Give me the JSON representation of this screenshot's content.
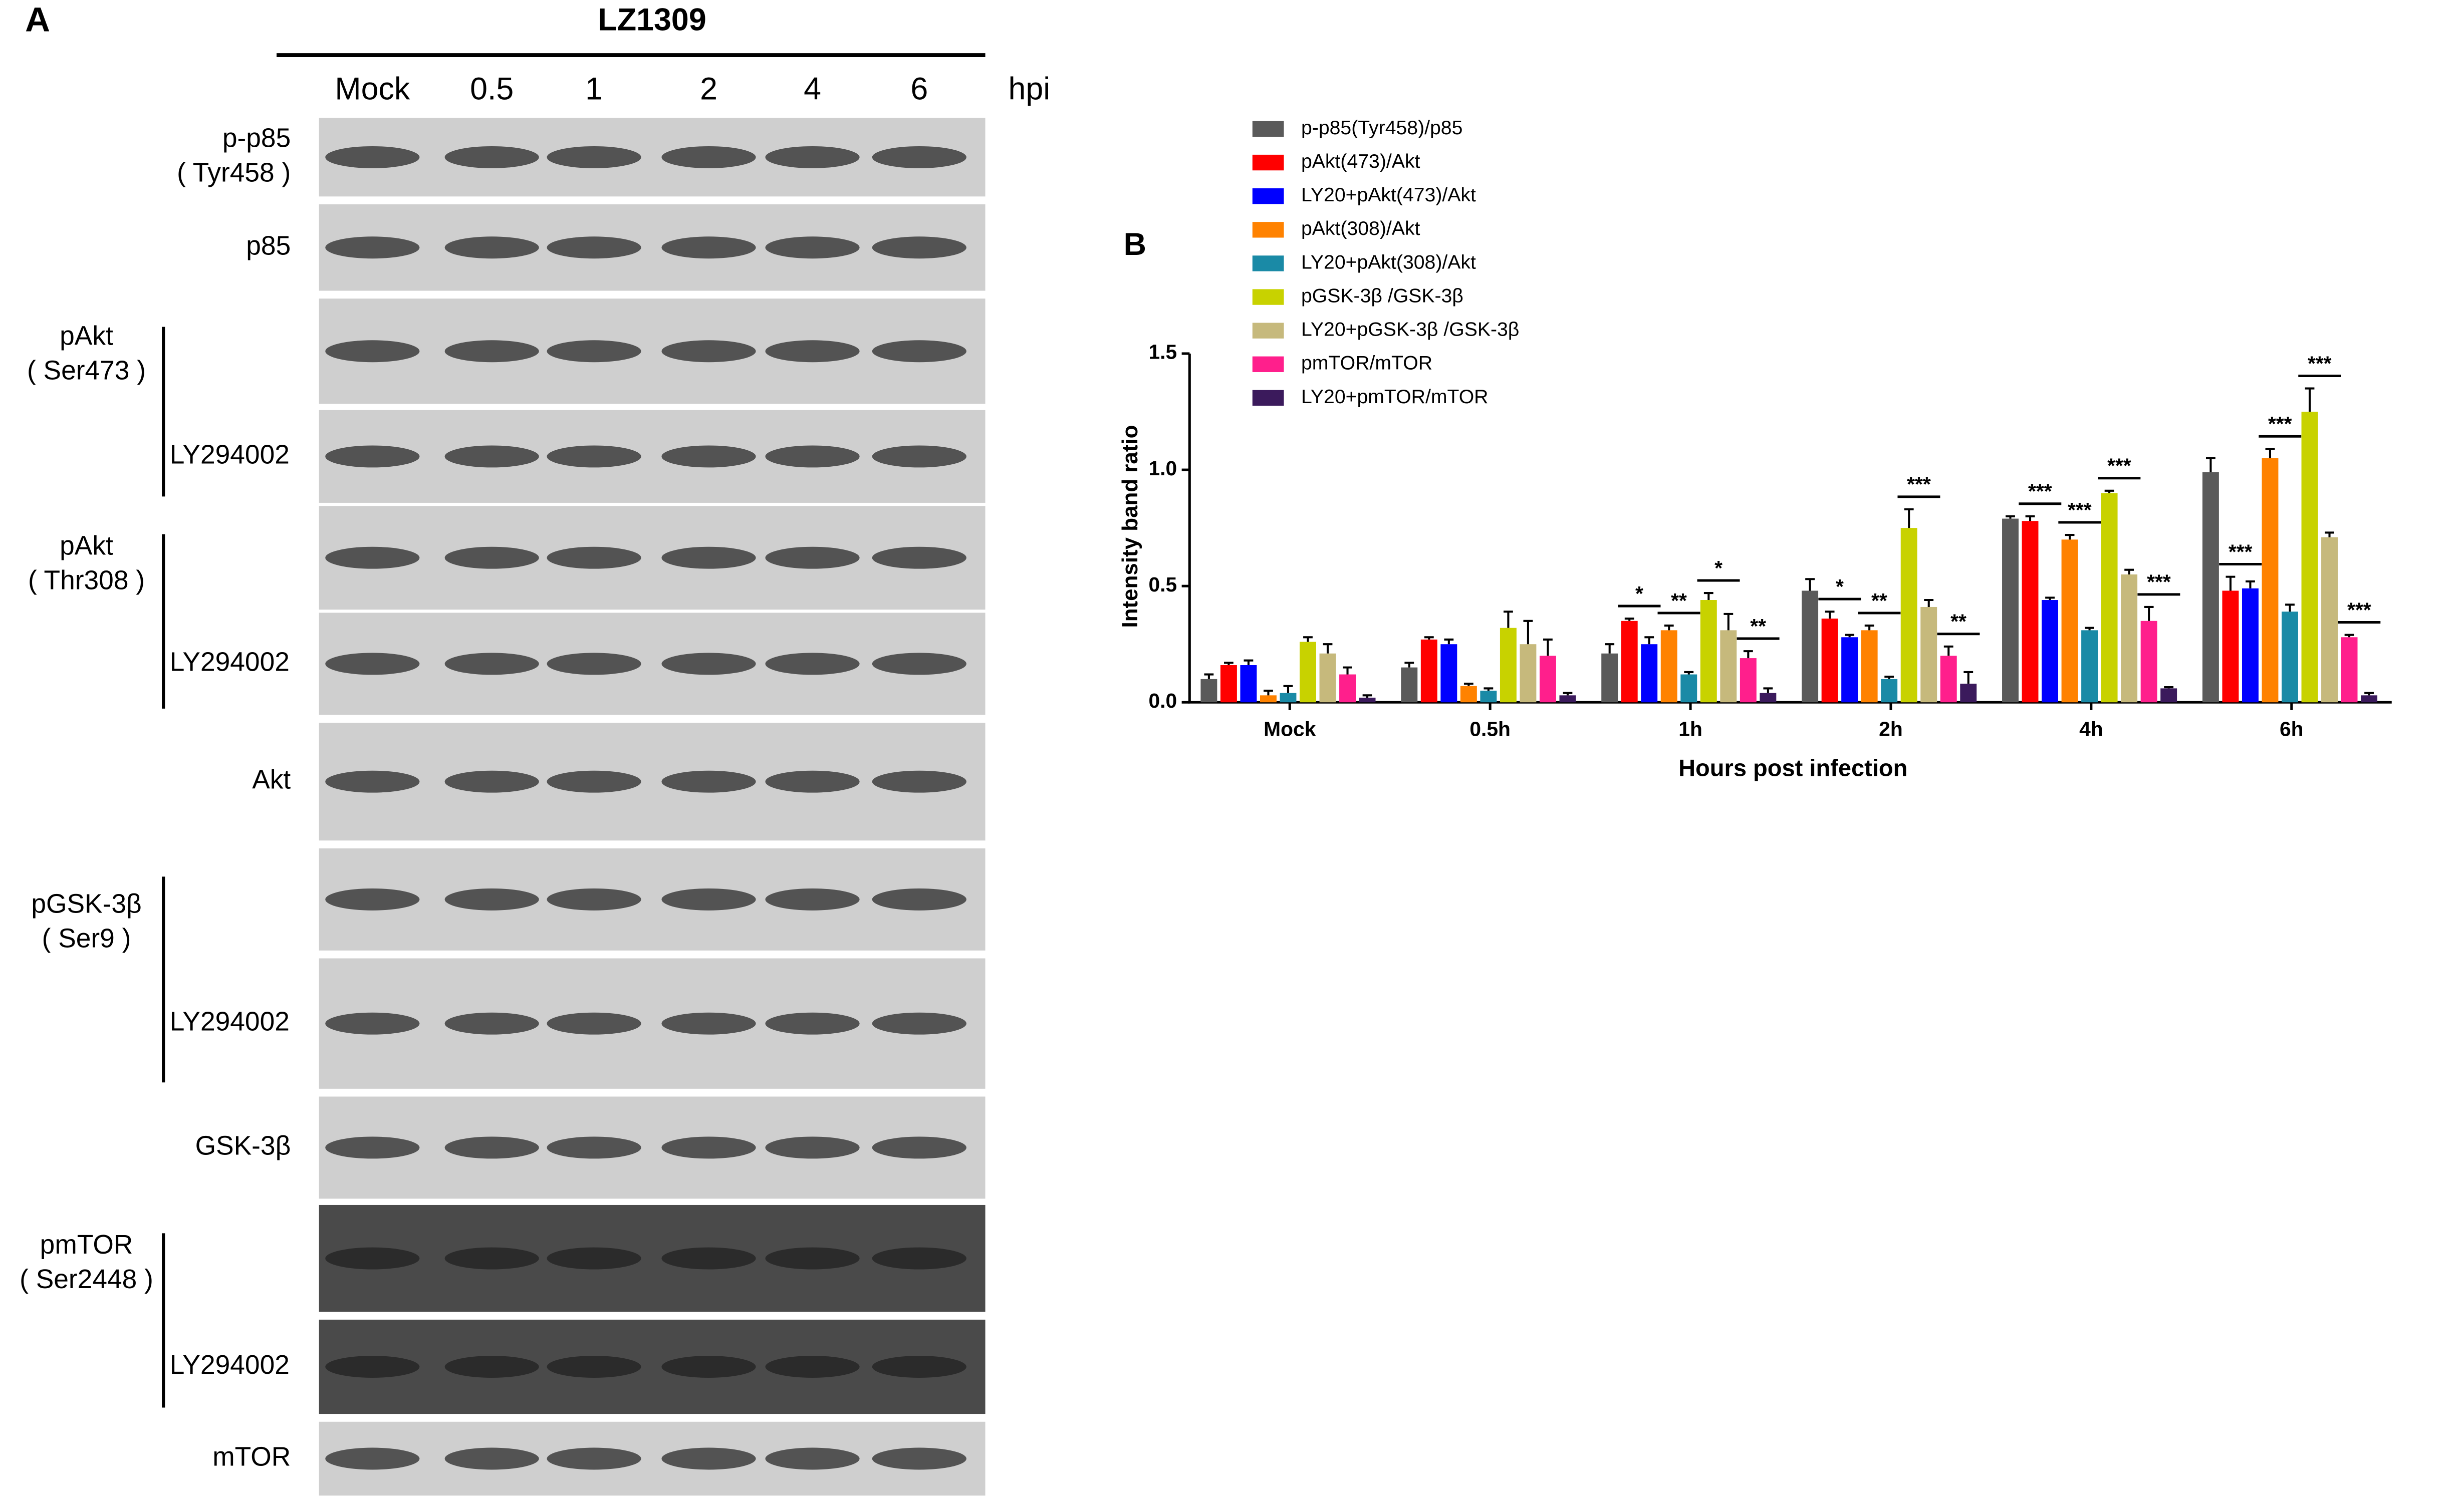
{
  "panel_a": {
    "label": "A",
    "strain": "LZ1309",
    "lanes": [
      "Mock",
      "0.5",
      "1",
      "2",
      "4",
      "6"
    ],
    "unit": "hpi",
    "blocks": [
      {
        "name": [
          "p-p85",
          "( Tyr458 )"
        ]
      },
      {
        "name": [
          "p85"
        ]
      },
      {
        "name": [
          "pAkt",
          "( Ser473 )"
        ],
        "treatment": "LY294002"
      },
      {
        "name": [
          "pAkt",
          "( Thr308 )"
        ],
        "treatment": "LY294002"
      },
      {
        "name": [
          "Akt"
        ]
      },
      {
        "name": [
          "pGSK-3β",
          "( Ser9 )"
        ],
        "treatment": "LY294002"
      },
      {
        "name": [
          "GSK-3β"
        ]
      },
      {
        "name": [
          "pmTOR",
          "( Ser2448 )"
        ],
        "treatment": "LY294002"
      },
      {
        "name": [
          "mTOR"
        ]
      }
    ]
  },
  "chart_data": {
    "type": "bar",
    "panel_label": "B",
    "x_label": "Hours post infection",
    "y_label": "Intensity band ratio",
    "categories": [
      "Mock",
      "0.5h",
      "1h",
      "2h",
      "4h",
      "6h"
    ],
    "ylim": [
      0,
      1.5
    ],
    "yticks": [
      {
        "value": 0,
        "label": "0.0"
      },
      0.5,
      {
        "value": 1,
        "label": "1.0"
      },
      1.5
    ],
    "series": [
      {
        "name": "p-p85(Tyr458)/p85",
        "color": "#5a5a5a",
        "values": [
          0.1,
          0.15,
          0.21,
          0.48,
          0.79,
          0.99
        ],
        "errors": [
          0.02,
          0.02,
          0.04,
          0.05,
          0.01,
          0.06
        ]
      },
      {
        "name": "pAkt(473)/Akt",
        "color": "#ff0000",
        "values": [
          0.16,
          0.27,
          0.35,
          0.36,
          0.78,
          0.48
        ],
        "errors": [
          0.01,
          0.01,
          0.01,
          0.03,
          0.02,
          0.06
        ],
        "significance": [
          null,
          null,
          "*",
          "*",
          "***",
          "***"
        ]
      },
      {
        "name": "LY20+pAkt(473)/Akt",
        "color": "#0000ff",
        "values": [
          0.16,
          0.25,
          0.25,
          0.28,
          0.44,
          0.49
        ],
        "errors": [
          0.02,
          0.02,
          0.03,
          0.01,
          0.01,
          0.03
        ]
      },
      {
        "name": "pAkt(308)/Akt",
        "color": "#ff8200",
        "values": [
          0.03,
          0.07,
          0.31,
          0.31,
          0.7,
          1.05
        ],
        "errors": [
          0.02,
          0.01,
          0.02,
          0.02,
          0.02,
          0.04
        ],
        "significance": [
          null,
          null,
          "**",
          "**",
          "***",
          "***"
        ]
      },
      {
        "name": "LY20+pAkt(308)/Akt",
        "color": "#1a8aa6",
        "values": [
          0.04,
          0.05,
          0.12,
          0.1,
          0.31,
          0.39
        ],
        "errors": [
          0.03,
          0.01,
          0.01,
          0.01,
          0.01,
          0.03
        ]
      },
      {
        "name": "pGSK-3β /GSK-3β",
        "color": "#c8d200",
        "values": [
          0.26,
          0.32,
          0.44,
          0.75,
          0.9,
          1.25
        ],
        "errors": [
          0.02,
          0.07,
          0.03,
          0.08,
          0.01,
          0.1
        ],
        "significance": [
          null,
          null,
          "*",
          "***",
          "***",
          "***"
        ]
      },
      {
        "name": "LY20+pGSK-3β /GSK-3β",
        "color": "#c6b97c",
        "values": [
          0.21,
          0.25,
          0.31,
          0.41,
          0.55,
          0.71
        ],
        "errors": [
          0.04,
          0.1,
          0.07,
          0.03,
          0.02,
          0.02
        ]
      },
      {
        "name": "pmTOR/mTOR",
        "color": "#ff1f8c",
        "values": [
          0.12,
          0.2,
          0.19,
          0.2,
          0.35,
          0.28
        ],
        "errors": [
          0.03,
          0.07,
          0.03,
          0.04,
          0.06,
          0.01
        ],
        "significance": [
          null,
          null,
          "**",
          "**",
          "***",
          "***"
        ]
      },
      {
        "name": "LY20+pmTOR/mTOR",
        "color": "#3b1a5c",
        "values": [
          0.02,
          0.03,
          0.04,
          0.08,
          0.06,
          0.03
        ],
        "errors": [
          0.01,
          0.01,
          0.02,
          0.05,
          0.005,
          0.01
        ]
      }
    ]
  }
}
